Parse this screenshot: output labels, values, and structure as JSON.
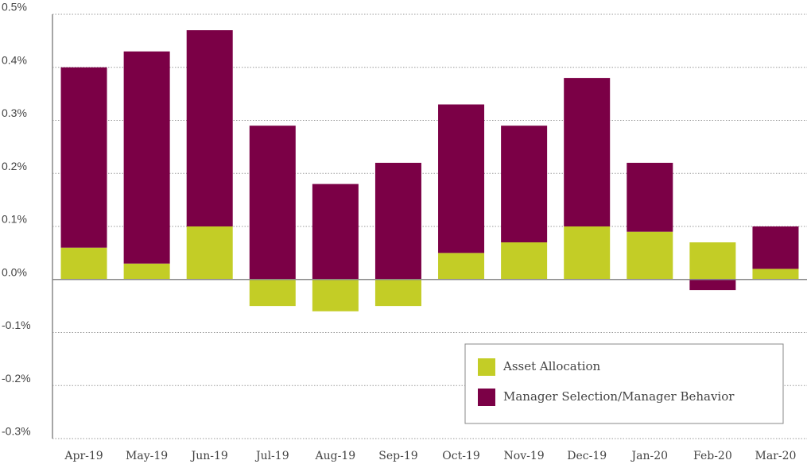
{
  "chart_data": {
    "type": "stacked_bar",
    "categories": [
      "Apr-19",
      "May-19",
      "Jun-19",
      "Jul-19",
      "Aug-19",
      "Sep-19",
      "Oct-19",
      "Nov-19",
      "Dec-19",
      "Jan-20",
      "Feb-20",
      "Mar-20"
    ],
    "series": [
      {
        "name": "Asset Allocation",
        "color": "#c3cd26",
        "values": [
          0.06,
          0.03,
          0.1,
          -0.05,
          -0.06,
          -0.05,
          0.05,
          0.07,
          0.1,
          0.09,
          0.07,
          0.02
        ]
      },
      {
        "name": "Manager Selection/Manager Behavior",
        "color": "#7b0046",
        "values": [
          0.34,
          0.4,
          0.37,
          0.29,
          0.18,
          0.22,
          0.28,
          0.22,
          0.28,
          0.13,
          -0.02,
          0.08
        ]
      }
    ],
    "ylim": [
      -0.3,
      0.5
    ],
    "yticks": [
      {
        "value": -0.3,
        "label": "-0.3%"
      },
      {
        "value": -0.2,
        "label": "-0.2%"
      },
      {
        "value": -0.1,
        "label": "-0.1%"
      },
      {
        "value": 0,
        "label": "0.0%"
      },
      {
        "value": 0.1,
        "label": "0.1%"
      },
      {
        "value": 0.2,
        "label": "0.2%"
      },
      {
        "value": 0.3,
        "label": "0.3%"
      },
      {
        "value": 0.4,
        "label": "0.4%"
      },
      {
        "value": 0.5,
        "label": "0.5%"
      }
    ],
    "grid": true,
    "legend": "lower right"
  }
}
